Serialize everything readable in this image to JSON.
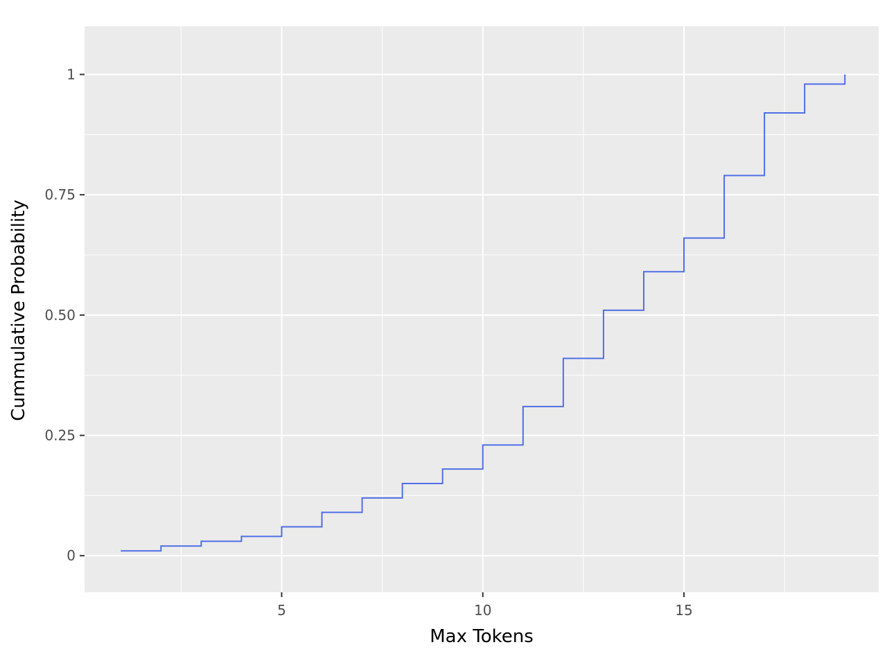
{
  "chart_data": {
    "type": "line",
    "style": "step",
    "title": "",
    "xlabel": "Max Tokens",
    "ylabel": "Cummulative Probability",
    "xlim": [
      0.1,
      19.84
    ],
    "ylim": [
      -0.076,
      1.1
    ],
    "x_ticks": [
      5,
      10,
      15
    ],
    "x_minor_ticks": [
      2.5,
      7.5,
      12.5,
      17.5
    ],
    "y_ticks": [
      0,
      0.25,
      0.5,
      0.75,
      1
    ],
    "y_tick_labels": [
      "0",
      "0.25",
      "0.50",
      "0.75",
      "1"
    ],
    "y_minor_ticks": [
      0.125,
      0.375,
      0.625,
      0.875
    ],
    "grid": true,
    "series": [
      {
        "x": [
          1,
          2,
          3,
          4,
          5,
          6,
          7,
          8,
          9,
          10,
          11,
          12,
          13,
          14,
          15,
          16,
          17,
          18,
          19
        ],
        "y": [
          0.01,
          0.02,
          0.03,
          0.04,
          0.06,
          0.09,
          0.12,
          0.15,
          0.18,
          0.23,
          0.31,
          0.41,
          0.51,
          0.59,
          0.66,
          0.79,
          0.92,
          0.98,
          1.0
        ]
      }
    ],
    "colors": {
      "panel": "#ebebeb",
      "grid": "#ffffff",
      "line": "#4f6ee6",
      "tick_text": "#4d4d4d",
      "tick_mark": "#333333"
    }
  }
}
